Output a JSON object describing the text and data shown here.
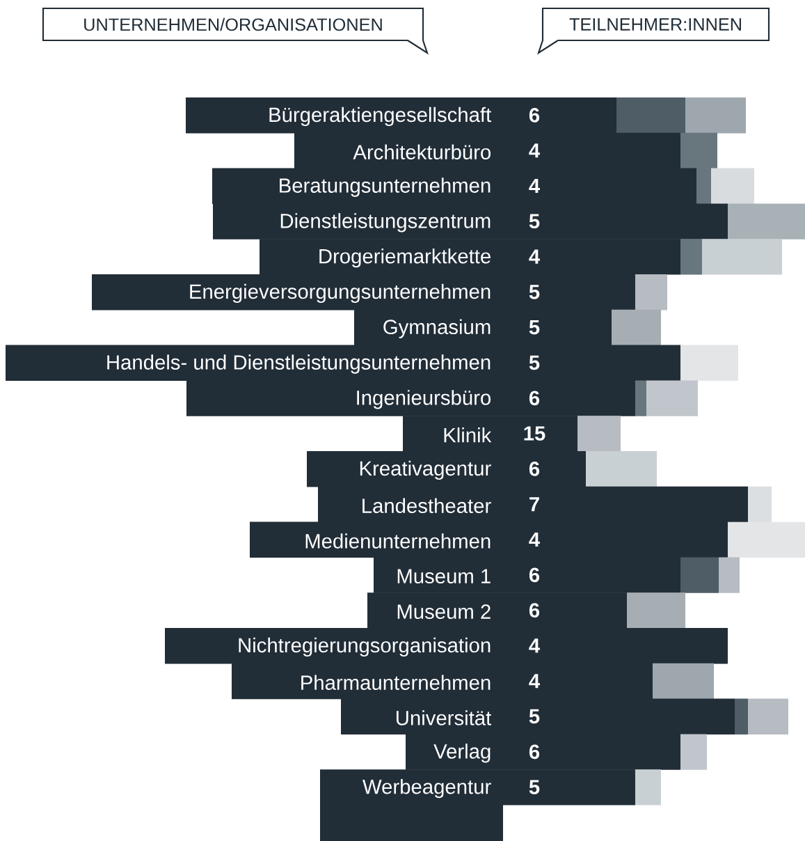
{
  "chart_data": {
    "type": "other",
    "annotations": [
      "UNTERNEHMEN/ORGANISATIONEN",
      "TEILNEHMER:INNEN"
    ],
    "categories": [
      "Bürgeraktiengesellschaft",
      "Architekturbüro",
      "Beratungsunternehmen",
      "Dienstleistungszentrum",
      "Drogeriemarktkette",
      "Energieversorgungsunternehmen",
      "Gymnasium",
      "Handels- und Dienstleistungsunternehmen",
      "Ingenieursbüro",
      "Klinik",
      "Kreativagentur",
      "Landestheater",
      "Medienunternehmen",
      "Museum 1",
      "Museum 2",
      "Nichtregierungsorganisation",
      "Pharmaunternehmen",
      "Universität",
      "Verlag",
      "Werbeagentur"
    ],
    "values": [
      6,
      4,
      4,
      5,
      4,
      5,
      5,
      5,
      6,
      15,
      6,
      7,
      4,
      6,
      6,
      4,
      4,
      5,
      6,
      5
    ],
    "color": "#212d37",
    "data_labels": true
  }
}
